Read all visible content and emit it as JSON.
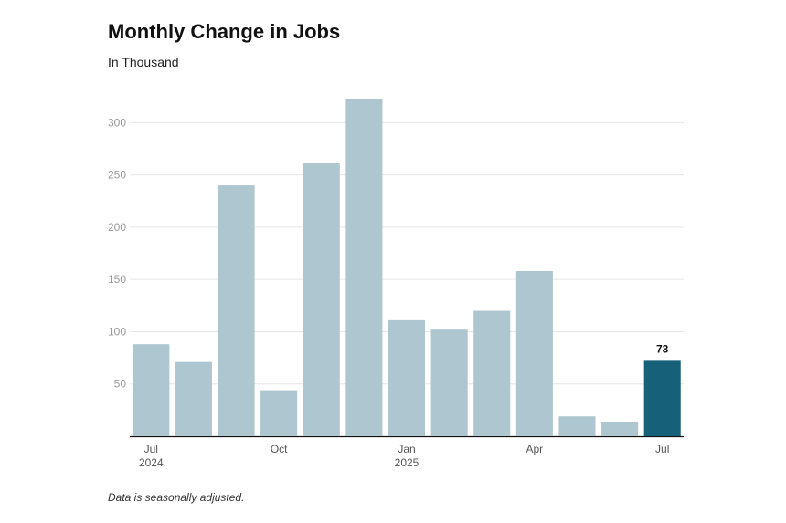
{
  "chart_data": {
    "type": "bar",
    "title": "Monthly Change in Jobs",
    "subtitle": "In Thousand",
    "footnote": "Data is seasonally adjusted.",
    "xlabel": "",
    "ylabel": "",
    "categories": [
      "Jul 2024",
      "Aug 2024",
      "Sep 2024",
      "Oct 2024",
      "Nov 2024",
      "Dec 2024",
      "Jan 2025",
      "Feb 2025",
      "Mar 2025",
      "Apr 2025",
      "May 2025",
      "Jun 2025",
      "Jul 2025"
    ],
    "values": [
      88,
      71,
      240,
      44,
      261,
      323,
      111,
      102,
      120,
      158,
      19,
      14,
      73
    ],
    "ylim": [
      0,
      330
    ],
    "y_ticks": [
      50,
      100,
      150,
      200,
      250,
      300
    ],
    "x_tick_labels": [
      {
        "index": 0,
        "line1": "Jul",
        "line2": "2024"
      },
      {
        "index": 3,
        "line1": "Oct",
        "line2": ""
      },
      {
        "index": 6,
        "line1": "Jan",
        "line2": "2025"
      },
      {
        "index": 9,
        "line1": "Apr",
        "line2": ""
      },
      {
        "index": 12,
        "line1": "Jul",
        "line2": ""
      }
    ],
    "highlight_index": 12,
    "data_labels": [
      {
        "index": 12,
        "text": "73"
      }
    ],
    "grid": true,
    "colors": {
      "bar": "#aec6cf",
      "highlight": "#17607a",
      "grid": "#e6e6e6",
      "axis": "#111111"
    }
  }
}
